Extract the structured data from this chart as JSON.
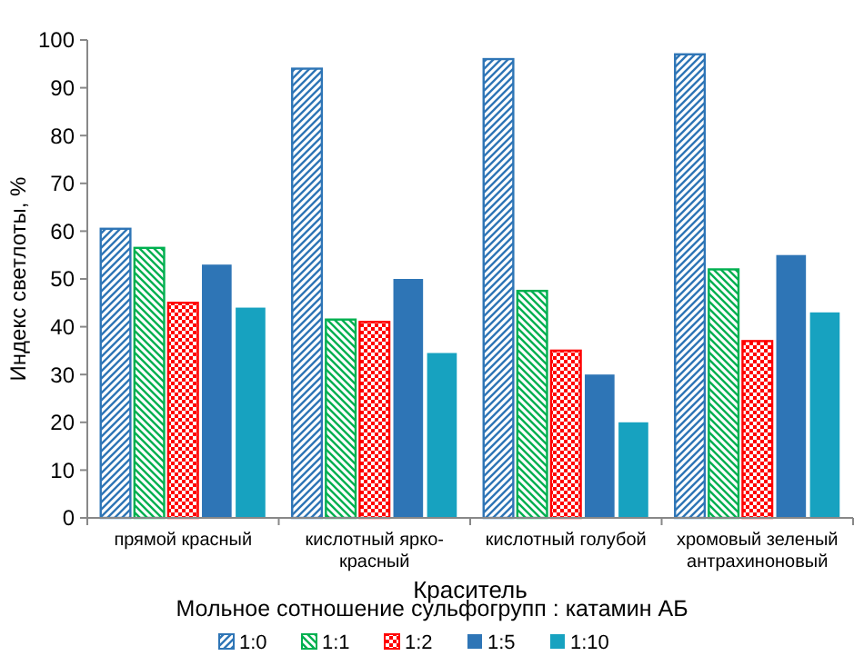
{
  "chart_data": {
    "type": "bar",
    "xlabel": "Краситель",
    "ylabel": "Индекс светлоты, %",
    "legend_title": "Мольное сотношение сульфогрупп : катамин АБ",
    "legend": "bottom",
    "grid": false,
    "categories": [
      "прямой красный",
      "кислотный ярко-красный",
      "кислотный голубой",
      "хромовый зеленый антрахиноновый"
    ],
    "ylim": [
      0,
      100
    ],
    "yticks": [
      0,
      10,
      20,
      30,
      40,
      50,
      60,
      70,
      80,
      90,
      100
    ],
    "series": [
      {
        "name": "1:0",
        "color": "#2e75b6",
        "values": [
          60.5,
          94,
          96,
          97
        ]
      },
      {
        "name": "1:1",
        "color": "#00b050",
        "values": [
          56.5,
          41.5,
          47.5,
          52
        ]
      },
      {
        "name": "1:2",
        "color": "#ff0000",
        "values": [
          45,
          41,
          35,
          37
        ]
      },
      {
        "name": "1:5",
        "color": "#2e75b6",
        "values": [
          53,
          50,
          30,
          55
        ]
      },
      {
        "name": "1:10",
        "color": "#17a2c0",
        "values": [
          44,
          34.5,
          20,
          43
        ]
      }
    ]
  }
}
